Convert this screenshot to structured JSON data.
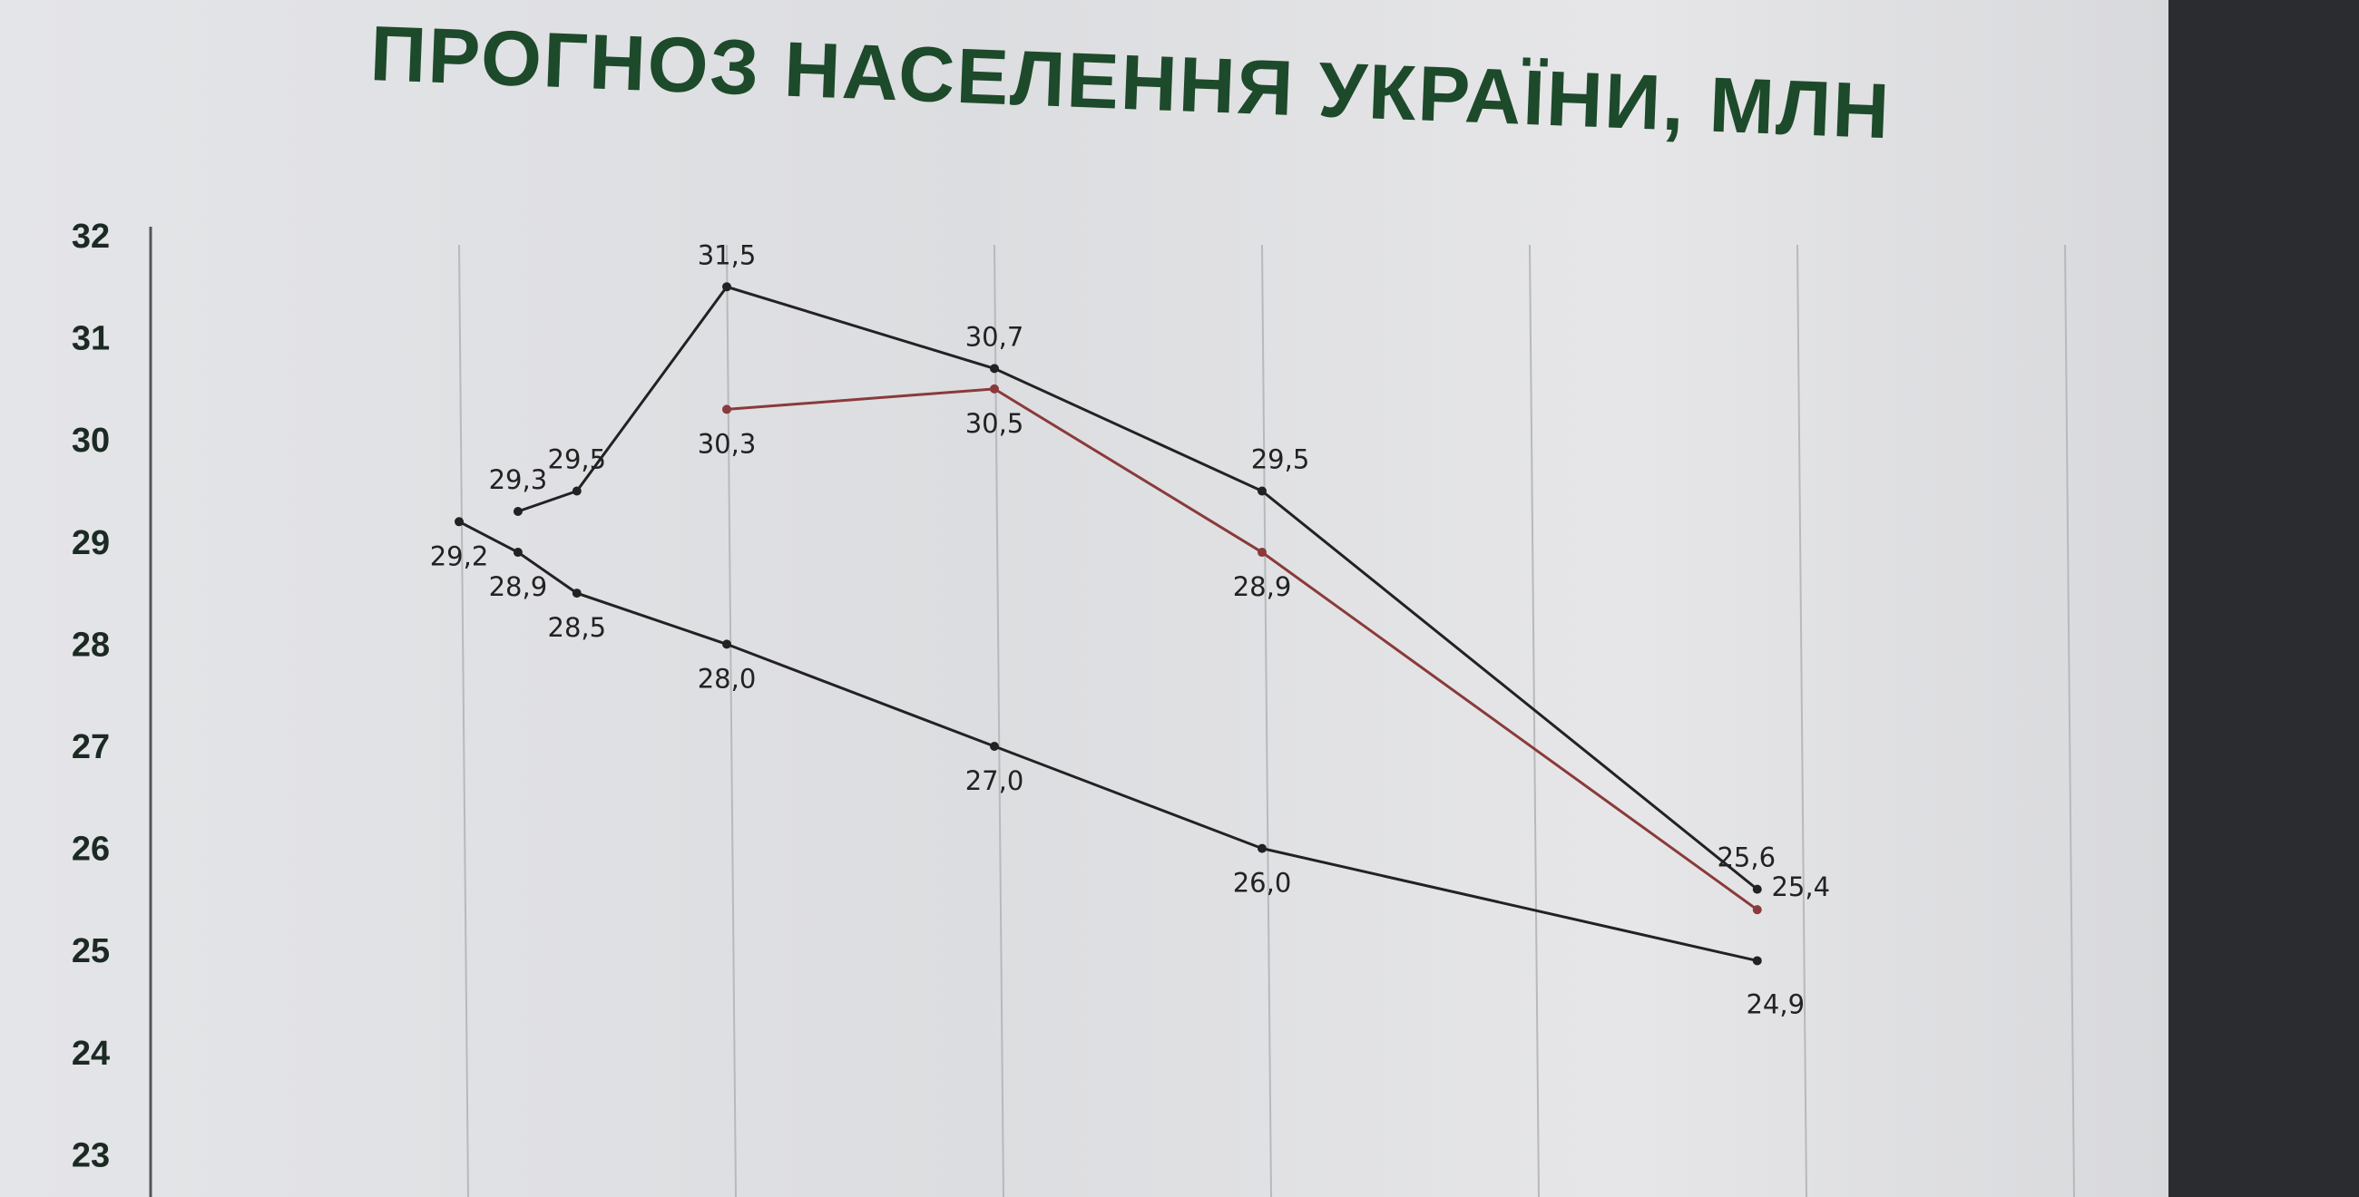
{
  "title": "ПРОГНОЗ НАСЕЛЕННЯ УКРАЇНИ, МЛН",
  "chart_data": {
    "type": "line",
    "title": "ПРОГНОЗ НАСЕЛЕННЯ УКРАЇНИ, МЛН",
    "xlabel": "",
    "ylabel": "",
    "ylim": [
      23,
      32
    ],
    "yticks": [
      "32",
      "31",
      "30",
      "29",
      "28",
      "27",
      "26",
      "25",
      "24",
      "23"
    ],
    "grid": "vertical",
    "series": [
      {
        "color": "#222222",
        "points": [
          [
            0,
            29.2,
            "29,2"
          ],
          [
            0.22,
            28.9,
            "28,9"
          ],
          [
            0.44,
            28.5,
            "28,5"
          ],
          [
            1,
            28.0,
            "28,0"
          ],
          [
            2,
            27.0,
            "27,0"
          ],
          [
            3,
            26.0,
            "26,0"
          ],
          [
            4.85,
            24.9,
            "24,9"
          ]
        ]
      },
      {
        "color": "#222222",
        "points": [
          [
            0.22,
            29.3,
            "29,3"
          ],
          [
            0.44,
            29.5,
            "29,5"
          ],
          [
            1,
            31.5,
            "31,5"
          ],
          [
            2,
            30.7,
            "30,7"
          ],
          [
            3,
            29.5,
            "29,5"
          ],
          [
            4.85,
            25.6,
            "25,6"
          ]
        ]
      },
      {
        "color": "#8a3a3a",
        "points": [
          [
            1,
            30.3,
            "30,3"
          ],
          [
            2,
            30.5,
            "30,5"
          ],
          [
            3,
            28.9,
            "28,9"
          ],
          [
            4.85,
            25.4,
            "25,4"
          ]
        ]
      }
    ]
  }
}
